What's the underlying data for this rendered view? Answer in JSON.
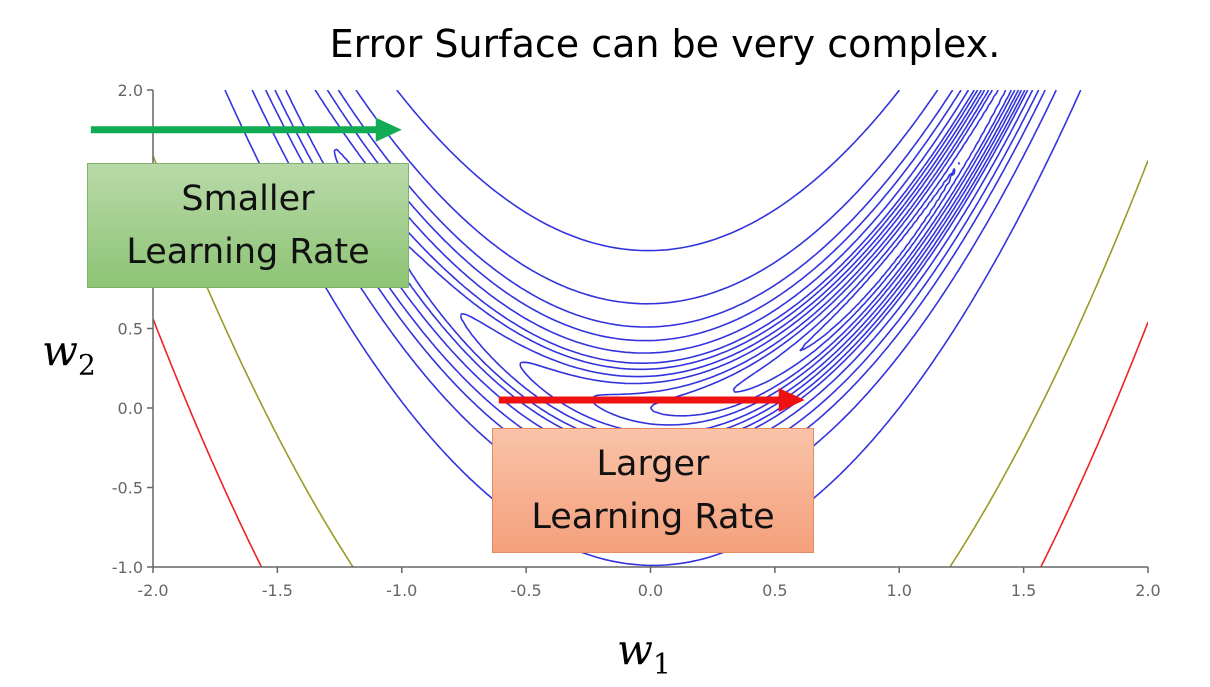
{
  "title": "Error Surface can be very complex.",
  "colors": {
    "contour": "#3333dd",
    "olive_contour": "#9a9a26",
    "red_contour": "#ee2222",
    "axis": "#666666",
    "green_arrow": "#11aa55",
    "red_arrow": "#ee1111"
  },
  "chart_data": {
    "type": "contour",
    "function": "Rosenbrock-like error surface L(w1, w2)",
    "xlabel_symbol": "w",
    "xlabel_sub": "1",
    "ylabel_symbol": "w",
    "ylabel_sub": "2",
    "xlim": [
      -2.0,
      2.0
    ],
    "ylim": [
      -1.0,
      2.0
    ],
    "x_ticks": [
      "-2.0",
      "-1.5",
      "-1.0",
      "-0.5",
      "0.0",
      "0.5",
      "1.0",
      "1.5",
      "2.0"
    ],
    "y_ticks": [
      "-1.0",
      "-0.5",
      "0.0",
      "0.5",
      "2.0"
    ],
    "blue_contour_levels": [
      0.5,
      1.0,
      2.0,
      3.0,
      4.5,
      6.0,
      8.0,
      10.0,
      14.0,
      20.0,
      28.0,
      45.0,
      100.0
    ],
    "olive_contour_level": 600,
    "red_contour_level": 1200,
    "grid": false,
    "annotations": [
      {
        "label_line1": "Smaller",
        "label_line2": "Learning Rate",
        "arrow_color": "green",
        "arrow_from": [
          -2.25,
          1.75
        ],
        "arrow_to": [
          -1.0,
          1.75
        ]
      },
      {
        "label_line1": "Larger",
        "label_line2": "Learning Rate",
        "arrow_color": "red",
        "arrow_from": [
          -0.61,
          0.05
        ],
        "arrow_to": [
          0.62,
          0.05
        ]
      }
    ]
  }
}
